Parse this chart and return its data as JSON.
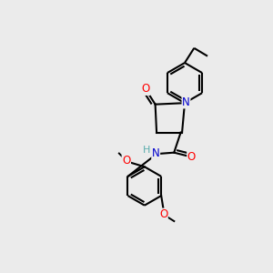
{
  "background_color": "#ebebeb",
  "bond_color": "#000000",
  "atom_colors": {
    "N": "#0000cc",
    "O": "#ff0000",
    "H": "#5aadad",
    "C": "#000000"
  },
  "figsize": [
    3.0,
    3.0
  ],
  "dpi": 100
}
